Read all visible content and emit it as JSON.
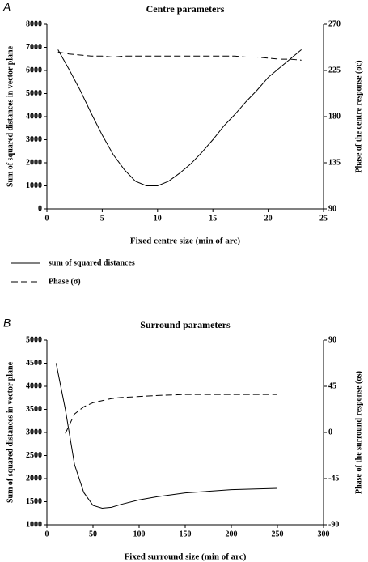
{
  "chart_data": [
    {
      "type": "line",
      "panel": "A",
      "title": "Centre parameters",
      "xlabel": "Fixed centre size (min of arc)",
      "ylabel": "Sum of squared distances in vector plane",
      "y2label": "Phase of the centre response (σc)",
      "x": [
        1,
        2,
        3,
        4,
        5,
        6,
        7,
        8,
        9,
        10,
        11,
        12,
        13,
        14,
        15,
        16,
        17,
        18,
        19,
        20,
        21,
        22,
        23
      ],
      "series": [
        {
          "name": "sum of squared distances",
          "color": "#000000",
          "dashed": false,
          "values": [
            6900,
            6050,
            5150,
            4150,
            3200,
            2350,
            1700,
            1200,
            1000,
            1000,
            1200,
            1550,
            1950,
            2450,
            3000,
            3600,
            4100,
            4650,
            5150,
            5700,
            6100,
            6500,
            6900
          ]
        },
        {
          "name": "Phase (σ)",
          "color": "#000000",
          "dashed": true,
          "axis": "y2",
          "values": [
            243,
            241,
            240,
            239,
            239,
            238,
            239,
            239,
            239,
            239,
            239,
            239,
            239,
            239,
            239,
            239,
            239,
            238,
            238,
            237,
            236,
            236,
            235
          ]
        }
      ],
      "xlim": [
        0,
        25
      ],
      "xticks": [
        0,
        5,
        10,
        15,
        20,
        25
      ],
      "ylim": [
        0,
        8000
      ],
      "yticks": [
        0,
        1000,
        2000,
        3000,
        4000,
        5000,
        6000,
        7000,
        8000
      ],
      "y2lim": [
        90,
        270
      ],
      "y2ticks": [
        90,
        135,
        180,
        225,
        270
      ]
    },
    {
      "type": "line",
      "panel": "B",
      "title": "Surround parameters",
      "xlabel": "Fixed surround size (min of arc)",
      "ylabel": "Sum of squared distances in vector plane",
      "y2label": "Phase of the surround response (σs)",
      "x": [
        10,
        20,
        30,
        40,
        50,
        60,
        70,
        80,
        100,
        120,
        150,
        200,
        250
      ],
      "series": [
        {
          "color": "#000000",
          "dashed": false,
          "values": [
            4500,
            3500,
            2300,
            1700,
            1420,
            1360,
            1380,
            1440,
            1540,
            1610,
            1690,
            1760,
            1790
          ]
        },
        {
          "color": "#000000",
          "dashed": true,
          "axis": "y2",
          "values": [
            null,
            -1,
            18,
            25,
            29,
            31,
            33,
            34,
            35,
            36,
            37,
            37,
            37
          ]
        }
      ],
      "xlim": [
        0,
        300
      ],
      "xticks": [
        0,
        50,
        100,
        150,
        200,
        250,
        300
      ],
      "ylim": [
        1000,
        5000
      ],
      "yticks": [
        1000,
        1500,
        2000,
        2500,
        3000,
        3500,
        4000,
        4500,
        5000
      ],
      "y2lim": [
        -90,
        90
      ],
      "y2ticks": [
        -90,
        -45,
        0,
        45,
        90
      ]
    }
  ]
}
